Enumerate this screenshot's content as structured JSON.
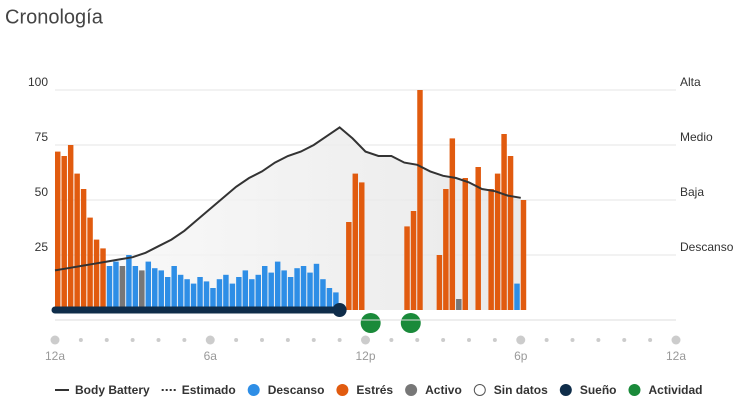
{
  "title": "Cronología",
  "chart_data": {
    "type": "timeline",
    "xlim": [
      0,
      24
    ],
    "xticks": [
      {
        "value": 0,
        "label": "12a"
      },
      {
        "value": 6,
        "label": "6a"
      },
      {
        "value": 12,
        "label": "12p"
      },
      {
        "value": 18,
        "label": "6p"
      },
      {
        "value": 24,
        "label": "12a"
      }
    ],
    "ylim": [
      0,
      100
    ],
    "yticks": [
      100,
      75,
      50,
      25
    ],
    "stress_levels": [
      {
        "value": 100,
        "label": "Alta"
      },
      {
        "value": 75,
        "label": "Medio"
      },
      {
        "value": 50,
        "label": "Baja"
      },
      {
        "value": 25,
        "label": "Descanso"
      }
    ],
    "grid": true,
    "body_battery": {
      "name": "Body Battery",
      "color": "#333333",
      "x": [
        0,
        0.5,
        1,
        1.5,
        2,
        2.5,
        3,
        3.5,
        4,
        4.5,
        5,
        5.5,
        6,
        6.5,
        7,
        7.5,
        8,
        8.5,
        9,
        9.5,
        10,
        10.5,
        11,
        11.5,
        12,
        12.5,
        13,
        13.5,
        14,
        14.5,
        15,
        15.5,
        16,
        16.5,
        17,
        17.5,
        18
      ],
      "values": [
        18,
        19,
        20,
        21,
        22,
        23,
        24,
        26,
        29,
        32,
        36,
        41,
        46,
        51,
        56,
        60,
        63,
        67,
        70,
        72,
        75,
        79,
        83,
        78,
        72,
        70,
        70,
        67,
        66,
        63,
        61,
        60,
        58,
        55,
        54,
        52,
        51
      ]
    },
    "series": [
      {
        "name": "Descanso",
        "color": "#2e8ee6",
        "x": [
          2,
          2.25,
          2.5,
          2.75,
          3,
          3.25,
          3.5,
          3.75,
          4,
          4.25,
          4.5,
          4.75,
          5,
          5.25,
          5.5,
          5.75,
          6,
          6.25,
          6.5,
          6.75,
          7,
          7.25,
          7.5,
          7.75,
          8,
          8.25,
          8.5,
          8.75,
          9,
          9.25,
          9.5,
          9.75,
          10,
          10.25,
          10.5,
          10.75,
          17.75
        ],
        "values": [
          20,
          22,
          18,
          25,
          20,
          17,
          22,
          19,
          18,
          15,
          20,
          16,
          14,
          12,
          15,
          13,
          10,
          14,
          16,
          12,
          15,
          18,
          14,
          16,
          20,
          17,
          22,
          18,
          15,
          19,
          20,
          17,
          21,
          14,
          10,
          8,
          12
        ]
      },
      {
        "name": "Estrés",
        "color": "#e15b0f",
        "x": [
          0,
          0.25,
          0.5,
          0.75,
          1,
          1.25,
          1.5,
          1.75,
          11.25,
          11.5,
          11.75,
          13.5,
          13.75,
          14,
          14.75,
          15,
          15.25,
          15.75,
          16.25,
          16.75,
          17,
          17.25,
          17.5,
          18
        ],
        "values": [
          72,
          70,
          75,
          62,
          55,
          42,
          32,
          28,
          40,
          62,
          58,
          38,
          45,
          100,
          25,
          55,
          78,
          60,
          65,
          55,
          62,
          80,
          70,
          50
        ]
      },
      {
        "name": "Activo",
        "color": "#777777",
        "x": [
          2.5,
          3.25,
          15.5
        ],
        "values": [
          20,
          18,
          5
        ]
      }
    ],
    "sleep": {
      "name": "Sueño",
      "color": "#0f2d4a",
      "start": 0,
      "end": 11
    },
    "activities": {
      "name": "Actividad",
      "color": "#1a8a3a",
      "x": [
        12.2,
        13.75
      ]
    },
    "legend": [
      "Body Battery",
      "Estimado",
      "Descanso",
      "Estrés",
      "Activo",
      "Sin datos",
      "Sueño",
      "Actividad"
    ]
  }
}
